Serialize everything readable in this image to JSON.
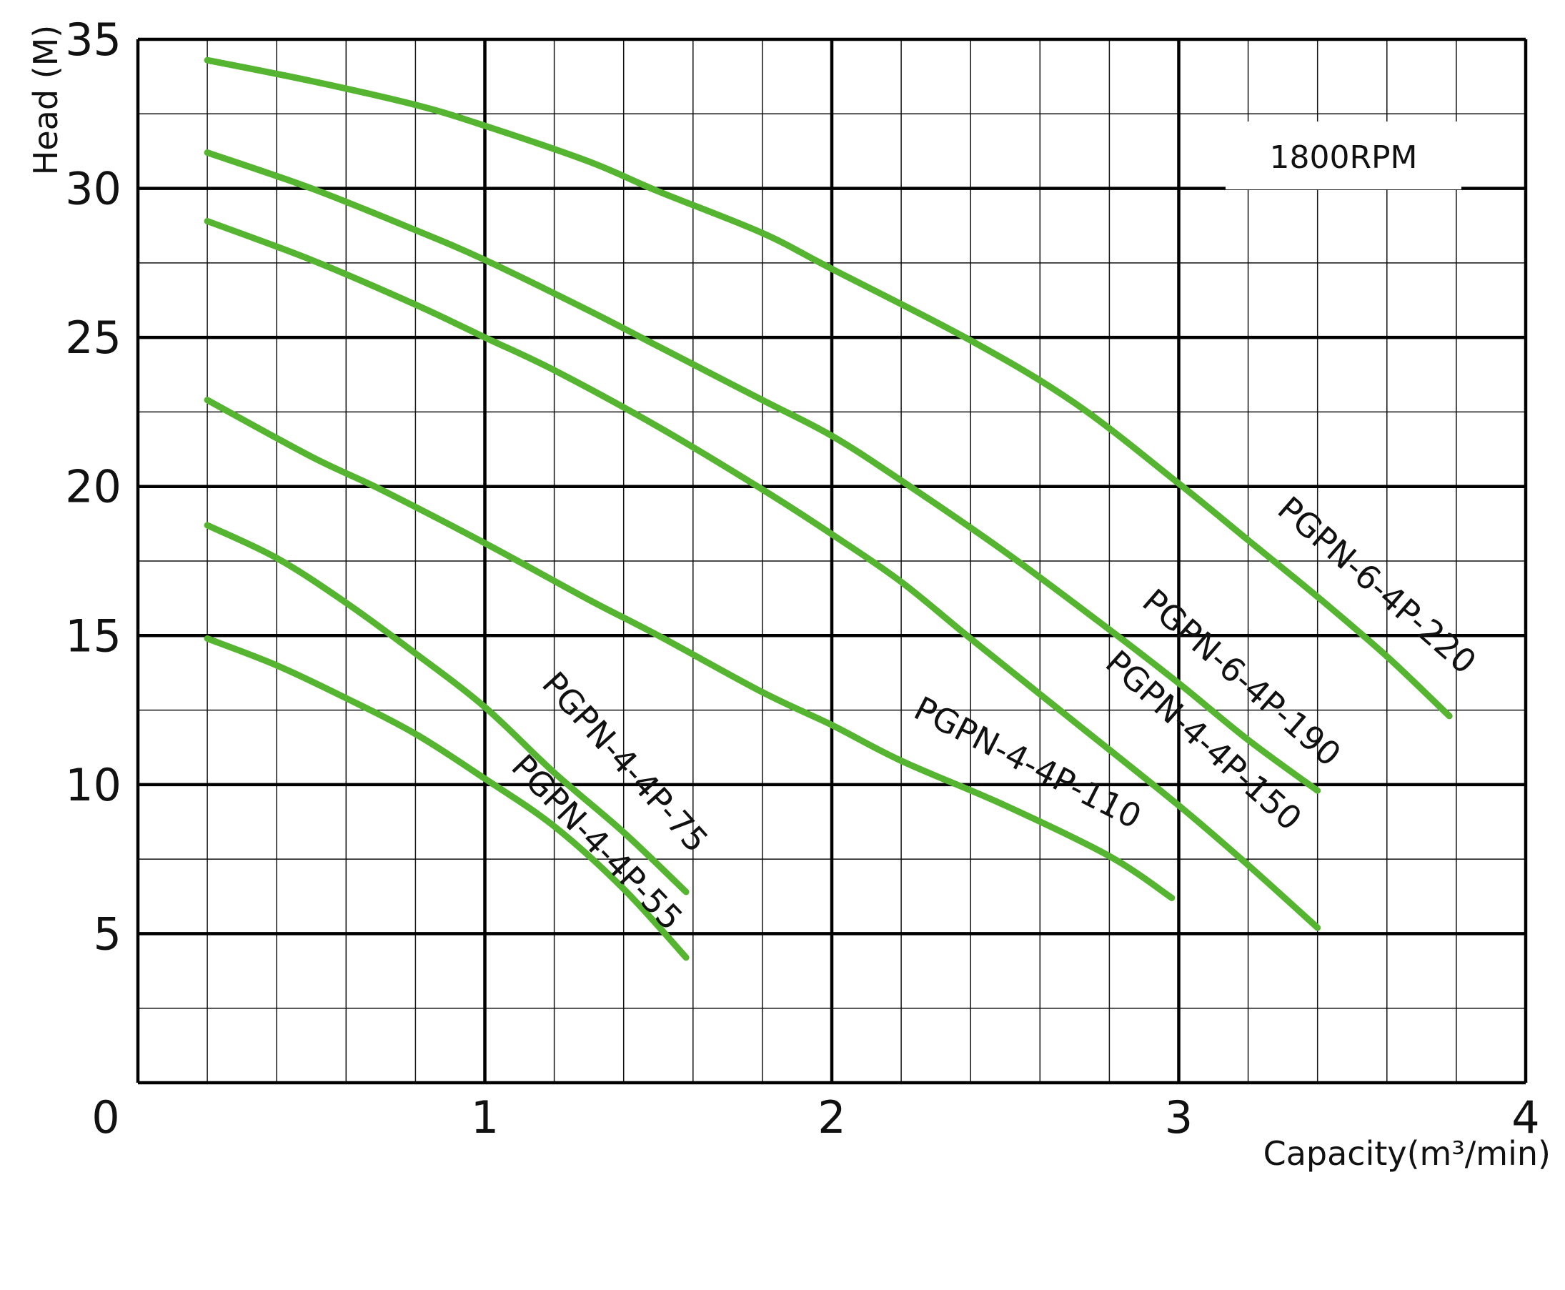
{
  "chart_data": {
    "type": "line",
    "title": "",
    "xlabel": "Capacity(m³/min)",
    "ylabel": "Head (M)",
    "annotation": "1800RPM",
    "xlim": [
      0,
      4
    ],
    "ylim": [
      0,
      35
    ],
    "x_ticks": [
      "0",
      "1",
      "2",
      "3",
      "4"
    ],
    "y_ticks": [
      "5",
      "10",
      "15",
      "20",
      "25",
      "30",
      "35"
    ],
    "x_minor_step": 0.2,
    "y_minor_step": 2.5,
    "grid": true,
    "legend": "none",
    "line_color": "#55b530",
    "series": [
      {
        "name": "PGPN-6-4P-220",
        "x": [
          0.2,
          0.5,
          0.8,
          1.0,
          1.3,
          1.5,
          1.8,
          2.0,
          2.4,
          2.7,
          3.0,
          3.2,
          3.4,
          3.6,
          3.78
        ],
        "y": [
          34.3,
          33.6,
          32.8,
          32.1,
          30.9,
          29.9,
          28.5,
          27.3,
          24.9,
          22.8,
          20.1,
          18.2,
          16.3,
          14.3,
          12.3
        ]
      },
      {
        "name": "PGPN-6-4P-190",
        "x": [
          0.2,
          0.5,
          0.8,
          1.0,
          1.3,
          1.5,
          1.8,
          2.0,
          2.2,
          2.5,
          2.8,
          3.0,
          3.2,
          3.4
        ],
        "y": [
          31.2,
          30.0,
          28.6,
          27.6,
          25.9,
          24.7,
          22.9,
          21.7,
          20.2,
          17.8,
          15.2,
          13.4,
          11.5,
          9.8
        ]
      },
      {
        "name": "PGPN-4-4P-150",
        "x": [
          0.2,
          0.5,
          0.8,
          1.0,
          1.2,
          1.5,
          1.8,
          2.0,
          2.2,
          2.4,
          2.7,
          3.0,
          3.2,
          3.4
        ],
        "y": [
          28.9,
          27.6,
          26.1,
          25.0,
          23.9,
          22.0,
          19.9,
          18.4,
          16.8,
          14.9,
          12.1,
          9.3,
          7.3,
          5.2
        ]
      },
      {
        "name": "PGPN-4-4P-110",
        "x": [
          0.2,
          0.5,
          0.7,
          1.0,
          1.3,
          1.5,
          1.8,
          2.0,
          2.2,
          2.5,
          2.8,
          2.98
        ],
        "y": [
          22.9,
          21.0,
          19.9,
          18.1,
          16.2,
          15.0,
          13.1,
          12.0,
          10.8,
          9.3,
          7.6,
          6.2
        ]
      },
      {
        "name": "PGPN-4-4P-75",
        "x": [
          0.2,
          0.4,
          0.6,
          0.8,
          1.0,
          1.2,
          1.4,
          1.58
        ],
        "y": [
          18.7,
          17.6,
          16.1,
          14.4,
          12.6,
          10.4,
          8.4,
          6.4
        ]
      },
      {
        "name": "PGPN-4-4P-55",
        "x": [
          0.2,
          0.4,
          0.6,
          0.8,
          1.0,
          1.2,
          1.4,
          1.58
        ],
        "y": [
          14.9,
          14.0,
          12.9,
          11.7,
          10.2,
          8.6,
          6.5,
          4.2
        ]
      }
    ]
  }
}
